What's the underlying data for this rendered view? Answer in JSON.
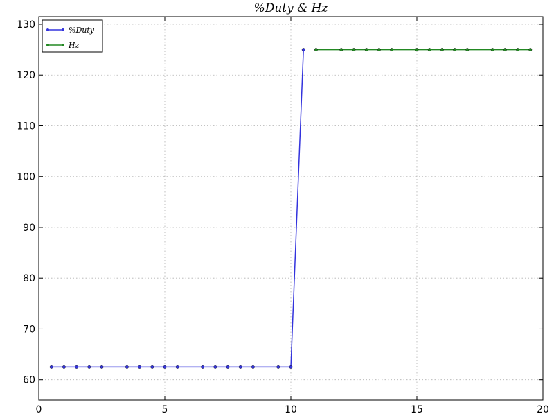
{
  "chart_data": {
    "type": "line",
    "title": "%Duty & Hz",
    "xlabel": "",
    "ylabel": "",
    "xlim": [
      0,
      20
    ],
    "ylim": [
      56,
      131.5
    ],
    "xticks": [
      0,
      5,
      10,
      15,
      20
    ],
    "yticks": [
      60,
      70,
      80,
      90,
      100,
      110,
      120,
      130
    ],
    "grid": true,
    "legend": "top-left",
    "series": [
      {
        "name": "%Duty",
        "color": "#3333dd",
        "x": [
          0.5,
          1.0,
          1.5,
          2.0,
          2.5,
          3.5,
          4.0,
          4.5,
          5.0,
          5.5,
          6.5,
          7.0,
          7.5,
          8.0,
          8.5,
          9.5,
          10.0,
          10.5
        ],
        "y": [
          62.5,
          62.5,
          62.5,
          62.5,
          62.5,
          62.5,
          62.5,
          62.5,
          62.5,
          62.5,
          62.5,
          62.5,
          62.5,
          62.5,
          62.5,
          62.5,
          62.5,
          125.0
        ]
      },
      {
        "name": "Hz",
        "color": "#228822",
        "x": [
          11.0,
          12.0,
          12.5,
          13.0,
          13.5,
          14.0,
          15.0,
          15.5,
          16.0,
          16.5,
          17.0,
          18.0,
          18.5,
          19.0,
          19.5
        ],
        "y": [
          125.0,
          125.0,
          125.0,
          125.0,
          125.0,
          125.0,
          125.0,
          125.0,
          125.0,
          125.0,
          125.0,
          125.0,
          125.0,
          125.0,
          125.0
        ]
      }
    ]
  }
}
